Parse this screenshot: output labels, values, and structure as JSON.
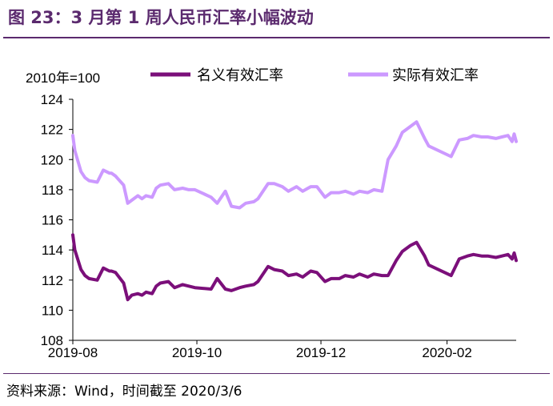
{
  "title": "图 23：3 月第 1 周人民币汇率小幅波动",
  "source": "资料来源：Wind，时间截至 2020/3/6",
  "colors": {
    "nominal": "#7B0F7A",
    "real": "#CC99FF",
    "title": "#5B2A6E",
    "axis": "#000000"
  },
  "chart_data": {
    "type": "line",
    "unit_label": "2010年=100",
    "xlabel": "",
    "ylabel": "",
    "ylim": [
      108,
      124
    ],
    "yticks": [
      108,
      110,
      112,
      114,
      116,
      118,
      120,
      122,
      124
    ],
    "xlim": [
      "2019-08-01",
      "2020-03-06"
    ],
    "xticks": [
      "2019-08",
      "2019-10",
      "2019-12",
      "2020-02"
    ],
    "legend_position": "top",
    "series": [
      {
        "name": "名义有效汇率",
        "x": [
          "2019-08-01",
          "2019-08-02",
          "2019-08-05",
          "2019-08-07",
          "2019-08-09",
          "2019-08-13",
          "2019-08-16",
          "2019-08-19",
          "2019-08-20",
          "2019-08-22",
          "2019-08-26",
          "2019-08-28",
          "2019-08-30",
          "2019-09-02",
          "2019-09-04",
          "2019-09-06",
          "2019-09-09",
          "2019-09-11",
          "2019-09-13",
          "2019-09-17",
          "2019-09-20",
          "2019-09-24",
          "2019-09-27",
          "2019-09-30",
          "2019-10-08",
          "2019-10-11",
          "2019-10-15",
          "2019-10-18",
          "2019-10-22",
          "2019-10-25",
          "2019-10-29",
          "2019-10-31",
          "2019-11-05",
          "2019-11-08",
          "2019-11-12",
          "2019-11-15",
          "2019-11-19",
          "2019-11-22",
          "2019-11-26",
          "2019-11-29",
          "2019-12-03",
          "2019-12-06",
          "2019-12-10",
          "2019-12-13",
          "2019-12-17",
          "2019-12-20",
          "2019-12-24",
          "2019-12-27",
          "2019-12-31",
          "2020-01-03",
          "2020-01-07",
          "2020-01-10",
          "2020-01-14",
          "2020-01-17",
          "2020-01-21",
          "2020-01-23",
          "2020-02-03",
          "2020-02-07",
          "2020-02-11",
          "2020-02-14",
          "2020-02-18",
          "2020-02-21",
          "2020-02-25",
          "2020-02-28",
          "2020-03-02",
          "2020-03-04",
          "2020-03-05",
          "2020-03-06"
        ],
        "values": [
          115.0,
          114.0,
          112.7,
          112.3,
          112.1,
          112.0,
          112.8,
          112.6,
          112.6,
          112.5,
          111.8,
          110.7,
          111.0,
          111.1,
          111.0,
          111.2,
          111.1,
          111.6,
          111.8,
          111.9,
          111.5,
          111.7,
          111.6,
          111.5,
          111.4,
          112.1,
          111.4,
          111.3,
          111.5,
          111.6,
          111.7,
          111.9,
          112.9,
          112.7,
          112.6,
          112.3,
          112.4,
          112.2,
          112.6,
          112.5,
          111.9,
          112.1,
          112.1,
          112.3,
          112.2,
          112.4,
          112.2,
          112.4,
          112.3,
          112.3,
          113.3,
          113.9,
          114.3,
          114.5,
          113.6,
          113.0,
          112.3,
          113.4,
          113.6,
          113.7,
          113.6,
          113.6,
          113.5,
          113.6,
          113.7,
          113.4,
          113.8,
          113.3
        ]
      },
      {
        "name": "实际有效汇率",
        "x": [
          "2019-08-01",
          "2019-08-02",
          "2019-08-05",
          "2019-08-07",
          "2019-08-09",
          "2019-08-13",
          "2019-08-16",
          "2019-08-19",
          "2019-08-20",
          "2019-08-22",
          "2019-08-26",
          "2019-08-28",
          "2019-08-30",
          "2019-09-02",
          "2019-09-04",
          "2019-09-06",
          "2019-09-09",
          "2019-09-11",
          "2019-09-13",
          "2019-09-17",
          "2019-09-20",
          "2019-09-24",
          "2019-09-27",
          "2019-09-30",
          "2019-10-08",
          "2019-10-11",
          "2019-10-15",
          "2019-10-18",
          "2019-10-22",
          "2019-10-25",
          "2019-10-29",
          "2019-10-31",
          "2019-11-05",
          "2019-11-08",
          "2019-11-12",
          "2019-11-15",
          "2019-11-19",
          "2019-11-22",
          "2019-11-26",
          "2019-11-29",
          "2019-12-03",
          "2019-12-06",
          "2019-12-10",
          "2019-12-13",
          "2019-12-17",
          "2019-12-20",
          "2019-12-24",
          "2019-12-27",
          "2019-12-31",
          "2020-01-03",
          "2020-01-07",
          "2020-01-10",
          "2020-01-14",
          "2020-01-17",
          "2020-01-21",
          "2020-01-23",
          "2020-02-03",
          "2020-02-07",
          "2020-02-11",
          "2020-02-14",
          "2020-02-18",
          "2020-02-21",
          "2020-02-25",
          "2020-02-28",
          "2020-03-02",
          "2020-03-04",
          "2020-03-05",
          "2020-03-06"
        ],
        "values": [
          121.6,
          120.6,
          119.2,
          118.8,
          118.6,
          118.5,
          119.3,
          119.1,
          119.1,
          118.9,
          118.3,
          117.1,
          117.3,
          117.6,
          117.4,
          117.6,
          117.5,
          118.1,
          118.3,
          118.4,
          118.0,
          118.1,
          118.0,
          118.0,
          117.5,
          117.1,
          117.9,
          116.9,
          116.8,
          117.1,
          117.2,
          117.4,
          118.4,
          118.4,
          118.2,
          117.9,
          118.2,
          117.9,
          118.2,
          118.2,
          117.5,
          117.8,
          117.8,
          117.9,
          117.7,
          117.9,
          117.8,
          118.0,
          117.9,
          120.0,
          120.9,
          121.8,
          122.2,
          122.5,
          121.4,
          120.9,
          120.2,
          121.3,
          121.4,
          121.6,
          121.5,
          121.5,
          121.4,
          121.5,
          121.6,
          121.2,
          121.7,
          121.2
        ]
      }
    ]
  }
}
